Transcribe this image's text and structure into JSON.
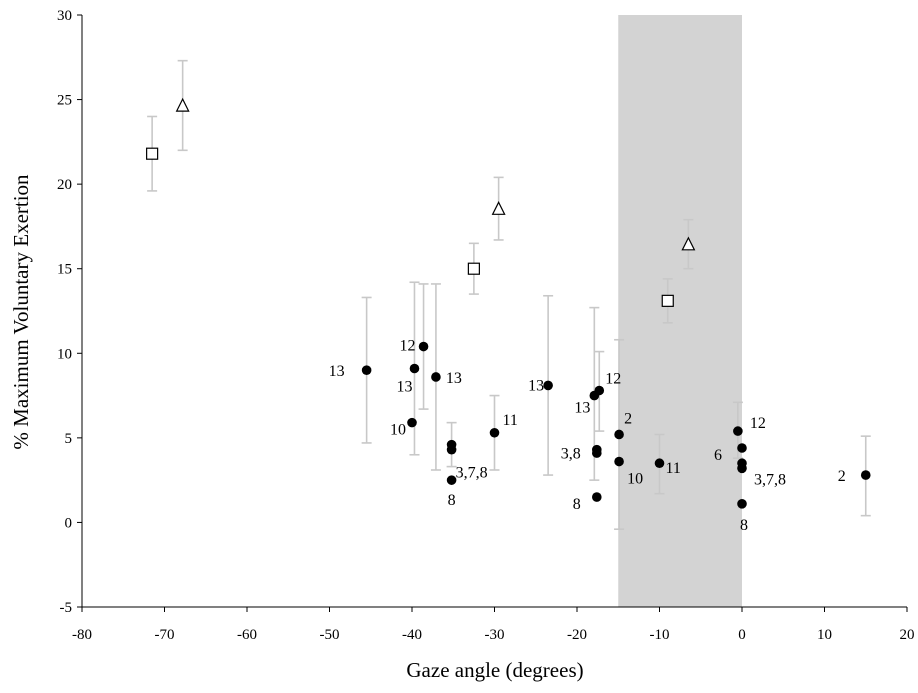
{
  "chart_data": {
    "type": "scatter",
    "xlabel": "Gaze angle (degrees)",
    "ylabel": "% Maximum Voluntary Exertion",
    "xlim": [
      -80,
      20
    ],
    "ylim": [
      -5,
      30
    ],
    "xticks": [
      -80,
      -70,
      -60,
      -50,
      -40,
      -30,
      -20,
      -10,
      0,
      10,
      20
    ],
    "yticks": [
      -5,
      0,
      5,
      10,
      15,
      20,
      25,
      30
    ],
    "grid": false,
    "legend": "none",
    "shaded_region": {
      "x": [
        -15,
        0
      ],
      "color": "#d3d3d3"
    },
    "colors": {
      "errorbar": "#c8c8c8",
      "point": "#000000",
      "shade": "#d3d3d3"
    },
    "series": [
      {
        "marker": "square",
        "points": [
          {
            "x": -71.5,
            "y": 21.8,
            "err_low": 19.6,
            "err_high": 24.0
          },
          {
            "x": -32.5,
            "y": 15.0,
            "err_low": 13.5,
            "err_high": 16.5
          },
          {
            "x": -9.0,
            "y": 13.1,
            "err_low": 11.8,
            "err_high": 14.4
          }
        ]
      },
      {
        "marker": "triangle",
        "points": [
          {
            "x": -67.8,
            "y": 24.6,
            "err_low": 22.0,
            "err_high": 27.3
          },
          {
            "x": -29.5,
            "y": 18.5,
            "err_low": 16.7,
            "err_high": 20.4
          },
          {
            "x": -6.5,
            "y": 16.4,
            "err_low": 15.0,
            "err_high": 17.9
          }
        ]
      },
      {
        "marker": "circle",
        "points": [
          {
            "x": -45.5,
            "y": 9.0,
            "err_low": 4.7,
            "err_high": 13.3,
            "label": "13"
          },
          {
            "x": -38.6,
            "y": 10.4,
            "err_low": 6.7,
            "err_high": 14.1,
            "label": "12"
          },
          {
            "x": -39.7,
            "y": 9.1,
            "err_low": 4.0,
            "err_high": 14.2,
            "label": "13"
          },
          {
            "x": -37.1,
            "y": 8.6,
            "err_low": 3.1,
            "err_high": 14.1,
            "label": "13"
          },
          {
            "x": -40.0,
            "y": 5.9,
            "label": "10"
          },
          {
            "x": -35.2,
            "y": 4.6,
            "err_low": 3.3,
            "err_high": 5.9
          },
          {
            "x": -35.2,
            "y": 4.3,
            "label": "3,7,8"
          },
          {
            "x": -35.2,
            "y": 2.5,
            "label": "8"
          },
          {
            "x": -30.0,
            "y": 5.3,
            "err_low": 3.1,
            "err_high": 7.5,
            "label": "11"
          },
          {
            "x": -23.5,
            "y": 8.1,
            "err_low": 2.8,
            "err_high": 13.4,
            "label": "13"
          },
          {
            "x": -17.9,
            "y": 7.5,
            "err_low": 2.5,
            "err_high": 12.7,
            "label": "13"
          },
          {
            "x": -17.3,
            "y": 7.8,
            "err_low": 5.4,
            "err_high": 10.1,
            "label": "12"
          },
          {
            "x": -17.6,
            "y": 4.3,
            "label": "3,8"
          },
          {
            "x": -17.6,
            "y": 4.1
          },
          {
            "x": -17.6,
            "y": 1.5,
            "label": "8"
          },
          {
            "x": -14.9,
            "y": 5.2,
            "err_low": -0.4,
            "err_high": 10.8,
            "label": "2"
          },
          {
            "x": -14.9,
            "y": 3.6,
            "label": "10"
          },
          {
            "x": -10.0,
            "y": 3.5,
            "err_low": 1.7,
            "err_high": 5.2,
            "label": "11"
          },
          {
            "x": -0.5,
            "y": 5.4,
            "err_low": 3.8,
            "err_high": 7.1,
            "label": "12"
          },
          {
            "x": 0.0,
            "y": 4.4,
            "label": "6"
          },
          {
            "x": 0.0,
            "y": 3.5
          },
          {
            "x": 0.0,
            "y": 3.2,
            "label": "3,7,8"
          },
          {
            "x": 0.0,
            "y": 1.1,
            "label": "8"
          },
          {
            "x": 15.0,
            "y": 2.8,
            "err_low": 0.4,
            "err_high": 5.1,
            "label": "2"
          }
        ]
      }
    ]
  }
}
